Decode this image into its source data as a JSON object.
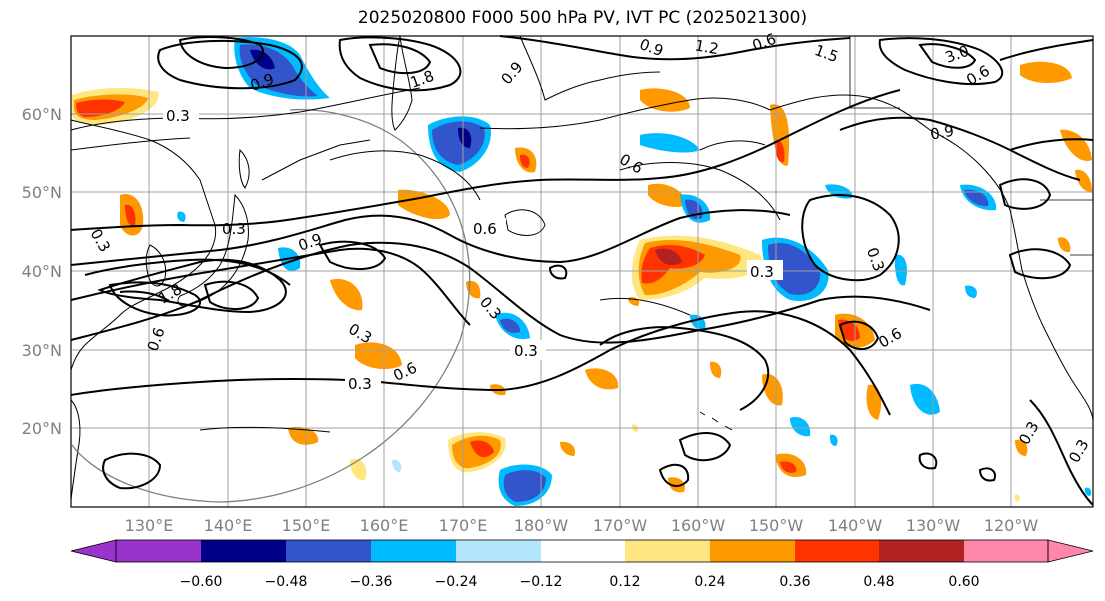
{
  "title": "2025020800 F000 500 hPa PV, IVT PC (2025021300)",
  "lat_labels": [
    "60°N",
    "50°N",
    "40°N",
    "30°N",
    "20°N"
  ],
  "lon_labels": [
    "130°E",
    "140°E",
    "150°E",
    "160°E",
    "170°E",
    "180°W",
    "170°W",
    "160°W",
    "150°W",
    "140°W",
    "130°W",
    "120°W"
  ],
  "colorbar": {
    "ticks": [
      "−0.60",
      "−0.48",
      "−0.36",
      "−0.24",
      "−0.12",
      "0.12",
      "0.24",
      "0.36",
      "0.48",
      "0.60"
    ],
    "colors": [
      "#9933cc",
      "#000088",
      "#3355cc",
      "#00bbff",
      "#b3e5fc",
      "#ffffff",
      "#ffe680",
      "#ff9900",
      "#ff3300",
      "#b22222",
      "#ff88aa"
    ]
  },
  "contour_labels": [
    "0.3",
    "0.3",
    "0.3",
    "0.3",
    "0.3",
    "0.3",
    "0.3",
    "0.3",
    "0.3",
    "0.3",
    "0.3",
    "0.6",
    "0.6",
    "0.6",
    "0.6",
    "0.6",
    "0.6",
    "0.6",
    "0.9",
    "0.9",
    "0.9",
    "0.9",
    "0.9",
    "1.2",
    "1.5",
    "1.8",
    "1.8",
    "3.0"
  ]
}
